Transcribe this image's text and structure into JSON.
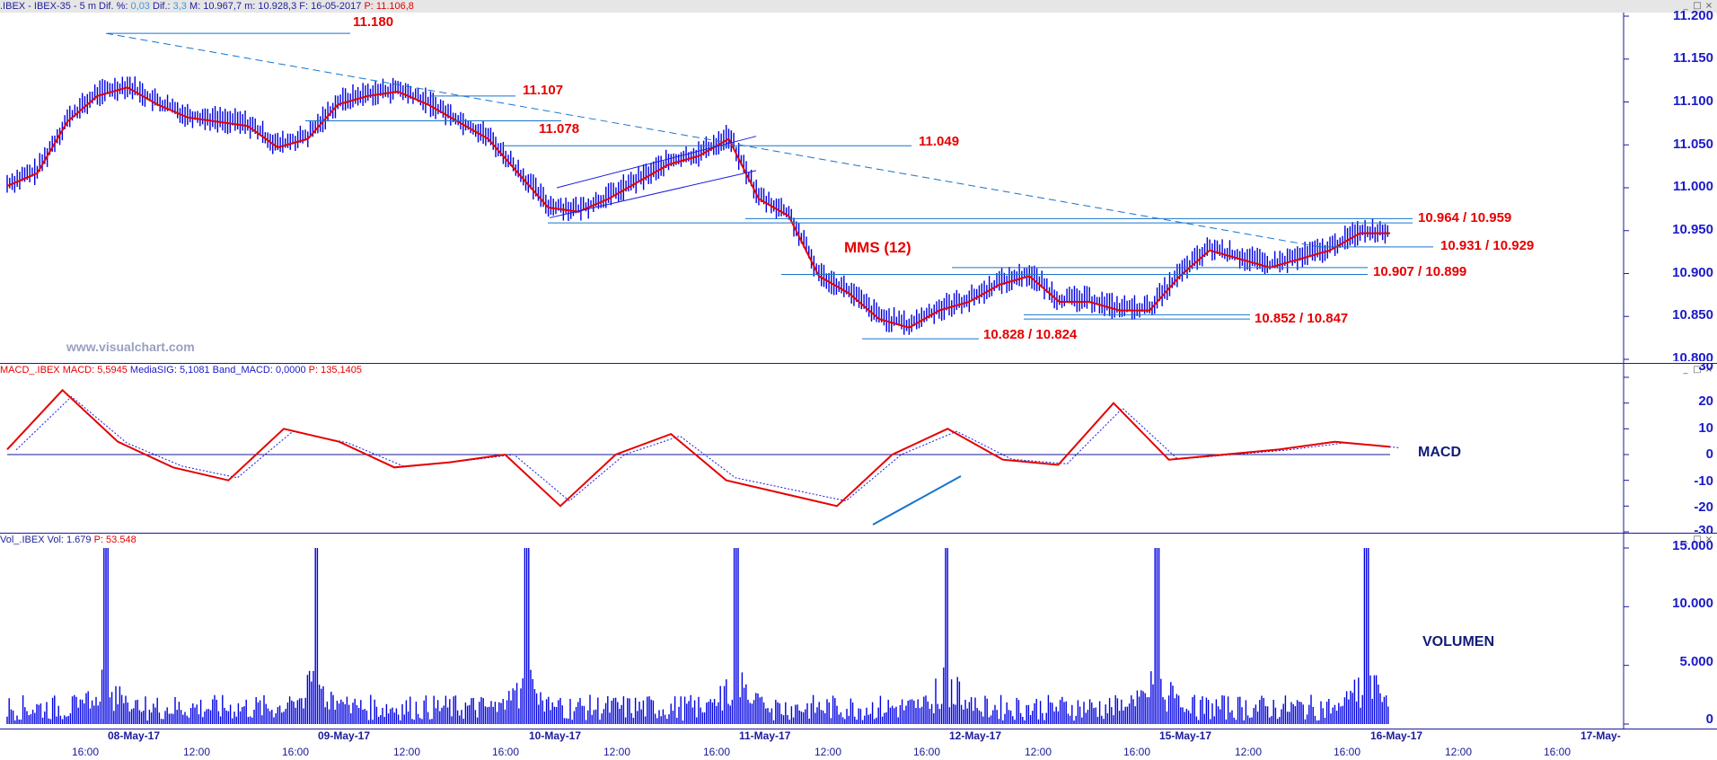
{
  "price_panel": {
    "header": {
      "symbol": ".IBEX - IBEX-35 - 5 m",
      "dif_pct_label": "Dif. %:",
      "dif_pct": "0,03",
      "dif_label": "Dif.:",
      "dif": "3,3",
      "max": "M: 10.967,7",
      "min": "m: 10.928,3",
      "date": "F: 16-05-2017",
      "last": "P: 11.106,8"
    },
    "annotations": [
      "11.180",
      "11.107",
      "11.078",
      "11.049",
      "10.964 / 10.959",
      "10.931 / 10.929",
      "10.907 / 10.899",
      "10.852 / 10.847",
      "10.828 / 10.824",
      "MMS (12)"
    ],
    "watermark": "www.visualchart.com",
    "y_ticks": [
      "11.200",
      "11.150",
      "11.100",
      "11.050",
      "11.000",
      "10.950",
      "10.900",
      "10.850",
      "10.800"
    ]
  },
  "macd_panel": {
    "header": {
      "name": "MACD_.IBEX",
      "macd": "MACD: 5,5945",
      "signal": "MediaSIG: 5,1081",
      "band": "Band_MACD: 0,0000",
      "p": "P: 135,1405"
    },
    "label": "MACD",
    "y_ticks": [
      "30",
      "20",
      "10",
      "0",
      "-10",
      "-20",
      "-30"
    ]
  },
  "volume_panel": {
    "header": {
      "name": "Vol_.IBEX",
      "vol": "Vol: 1.679",
      "p": "P: 53.548"
    },
    "label": "VOLUMEN",
    "y_ticks": [
      "15.000",
      "10.000",
      "5.000",
      "0"
    ]
  },
  "x_axis": {
    "dates": [
      "08-May-17",
      "09-May-17",
      "10-May-17",
      "11-May-17",
      "12-May-17",
      "15-May-17",
      "16-May-17",
      "17-May-"
    ],
    "times": [
      "16:00",
      "12:00",
      "16:00",
      "12:00",
      "16:00",
      "12:00",
      "16:00",
      "12:00",
      "16:00",
      "12:00",
      "16:00",
      "12:00",
      "16:00",
      "12:00",
      "16:00"
    ]
  },
  "window_buttons": [
    "_",
    "□",
    "×"
  ],
  "colors": {
    "accent_red": "#e60000",
    "series_blue": "#0000e0",
    "axis_blue": "#1a1ac8",
    "support_line": "#1874cd"
  },
  "chart_data": [
    {
      "type": "line",
      "title": "IBEX-35 - 5 m",
      "xlabel": "",
      "ylabel": "",
      "ylim": [
        10800,
        11200
      ],
      "series": [
        {
          "name": "MMS (12)",
          "values": [
            11005,
            11020,
            11080,
            11110,
            11120,
            11100,
            11085,
            11080,
            11075,
            11050,
            11060,
            11100,
            11110,
            11115,
            11100,
            11080,
            11060,
            11020,
            10980,
            10975,
            10990,
            11010,
            11030,
            11040,
            11060,
            10990,
            10970,
            10900,
            10880,
            10850,
            10840,
            10860,
            10870,
            10890,
            10900,
            10870,
            10870,
            10860,
            10860,
            10900,
            10930,
            10920,
            10910,
            10920,
            10930,
            10950,
            10950
          ]
        }
      ],
      "levels": [
        11180,
        11107,
        11078,
        11049,
        10964,
        10959,
        10931,
        10929,
        10907,
        10899,
        10852,
        10847,
        10828,
        10824
      ],
      "grid": false
    },
    {
      "type": "line",
      "title": "MACD",
      "ylim": [
        -30,
        30
      ],
      "series": [
        {
          "name": "MACD",
          "values": [
            2,
            25,
            5,
            -5,
            -10,
            10,
            5,
            -5,
            -3,
            0,
            -20,
            0,
            8,
            -10,
            -15,
            -20,
            0,
            10,
            -2,
            -4,
            20,
            -2,
            0,
            2,
            5,
            3
          ]
        }
      ],
      "grid": false
    },
    {
      "type": "bar",
      "title": "VOLUMEN",
      "ylim": [
        0,
        15000
      ],
      "categories": [
        "08-May-17",
        "09-May-17",
        "10-May-17",
        "11-May-17",
        "12-May-17",
        "15-May-17",
        "16-May-17"
      ],
      "values": [
        15000,
        15000,
        15000,
        15000,
        15000,
        15000,
        15000
      ]
    }
  ]
}
